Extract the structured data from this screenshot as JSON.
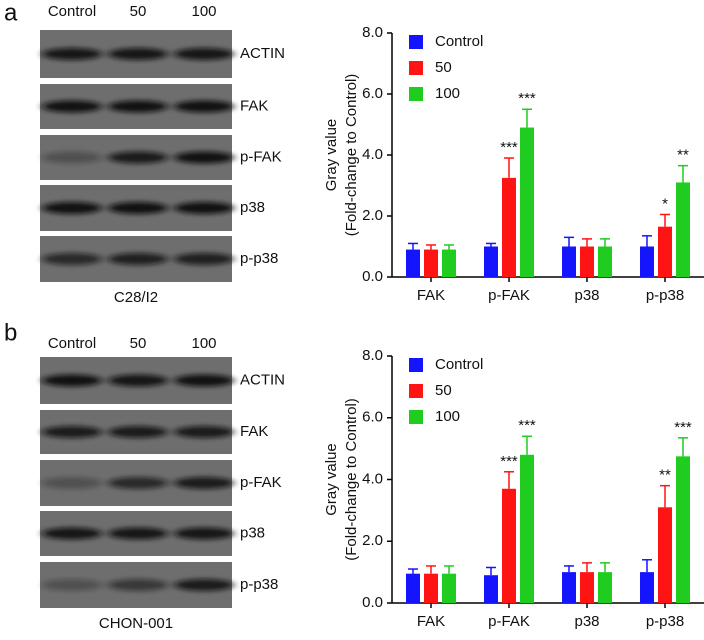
{
  "panels": [
    {
      "letter": "a",
      "blot": {
        "lanes": [
          "Control",
          "50",
          "100"
        ],
        "rows": [
          "ACTIN",
          "FAK",
          "p-FAK",
          "p38",
          "p-p38"
        ],
        "cell_line": "C28/I2"
      }
    },
    {
      "letter": "b",
      "blot": {
        "lanes": [
          "Control",
          "50",
          "100"
        ],
        "rows": [
          "ACTIN",
          "FAK",
          "p-FAK",
          "p38",
          "p-p38"
        ],
        "cell_line": "CHON-001"
      }
    }
  ],
  "chart_data": [
    {
      "type": "bar",
      "ylabel": [
        "Gray value",
        "(Fold-change to Control)"
      ],
      "categories": [
        "FAK",
        "p-FAK",
        "p38",
        "p-p38"
      ],
      "series": [
        {
          "name": "Control",
          "color": "#1414ff",
          "values": [
            0.9,
            1.0,
            1.0,
            1.0
          ],
          "errors": [
            0.2,
            0.1,
            0.3,
            0.35
          ],
          "significance": [
            null,
            null,
            null,
            null
          ]
        },
        {
          "name": "50",
          "color": "#ff1414",
          "values": [
            0.9,
            3.25,
            1.0,
            1.65
          ],
          "errors": [
            0.15,
            0.65,
            0.25,
            0.4
          ],
          "significance": [
            null,
            "***",
            null,
            "*"
          ]
        },
        {
          "name": "100",
          "color": "#1fcc1f",
          "values": [
            0.9,
            4.9,
            1.0,
            3.1
          ],
          "errors": [
            0.15,
            0.6,
            0.25,
            0.55
          ],
          "significance": [
            null,
            "***",
            null,
            "**"
          ]
        }
      ],
      "ylim": [
        0,
        8
      ],
      "yticks": [
        {
          "value": 0,
          "label": "0.0"
        },
        {
          "value": 2,
          "label": "2.0"
        },
        {
          "value": 4,
          "label": "4.0"
        },
        {
          "value": 6,
          "label": "6.0"
        },
        {
          "value": 8,
          "label": "8.0"
        }
      ],
      "legend": "top-left"
    },
    {
      "type": "bar",
      "ylabel": [
        "Gray value",
        "(Fold-change to Control)"
      ],
      "categories": [
        "FAK",
        "p-FAK",
        "p38",
        "p-p38"
      ],
      "series": [
        {
          "name": "Control",
          "color": "#1414ff",
          "values": [
            0.95,
            0.9,
            1.0,
            1.0
          ],
          "errors": [
            0.15,
            0.25,
            0.2,
            0.4
          ],
          "significance": [
            null,
            null,
            null,
            null
          ]
        },
        {
          "name": "50",
          "color": "#ff1414",
          "values": [
            0.95,
            3.7,
            1.0,
            3.1
          ],
          "errors": [
            0.25,
            0.55,
            0.3,
            0.7
          ],
          "significance": [
            null,
            "***",
            null,
            "**"
          ]
        },
        {
          "name": "100",
          "color": "#1fcc1f",
          "values": [
            0.95,
            4.8,
            1.0,
            4.75
          ],
          "errors": [
            0.25,
            0.6,
            0.3,
            0.6
          ],
          "significance": [
            null,
            "***",
            null,
            "***"
          ]
        }
      ],
      "ylim": [
        0,
        8
      ],
      "yticks": [
        {
          "value": 0,
          "label": "0.0"
        },
        {
          "value": 2,
          "label": "2.0"
        },
        {
          "value": 4,
          "label": "4.0"
        },
        {
          "value": 6,
          "label": "6.0"
        },
        {
          "value": 8,
          "label": "8.0"
        }
      ],
      "legend": "top-left"
    }
  ]
}
